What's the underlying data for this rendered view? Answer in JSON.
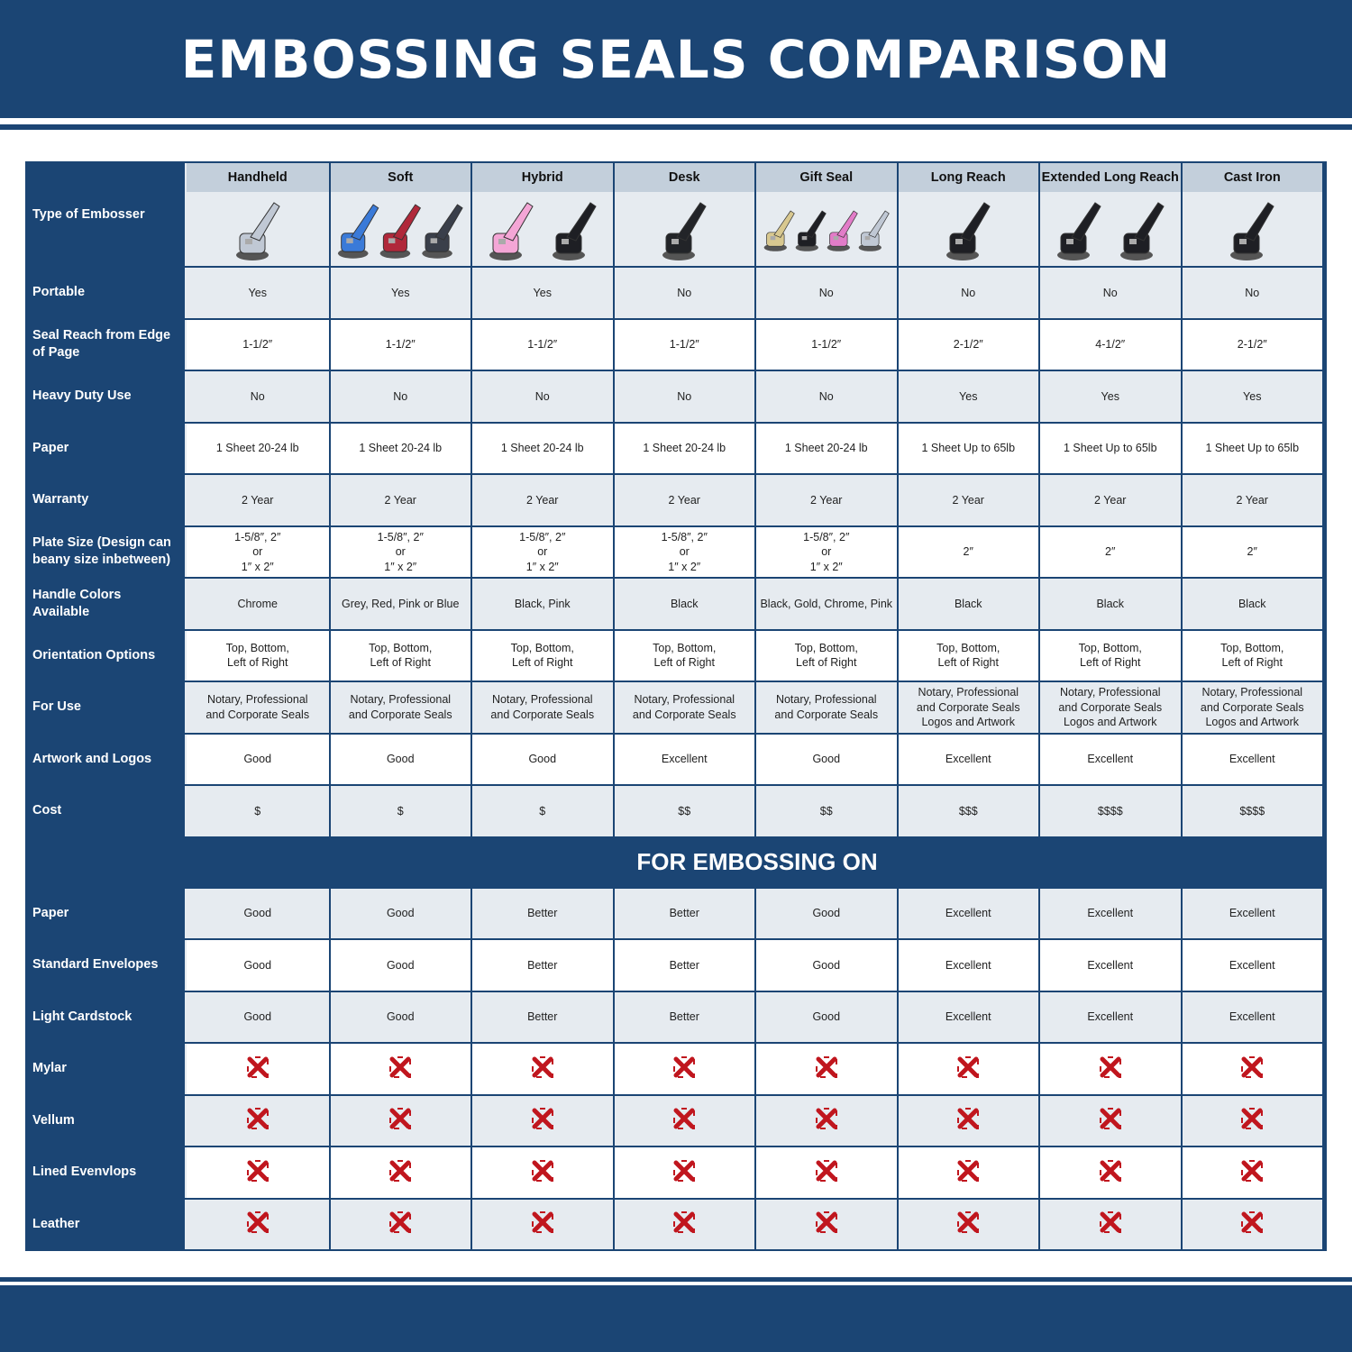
{
  "title": "EMBOSSING SEALS COMPARISON",
  "corner_label": "Type of Embosser",
  "columns": [
    {
      "name": "Handheld",
      "icon": "handheld-embosser-image",
      "colors": [
        "#c0c8d4"
      ]
    },
    {
      "name": "Soft",
      "icon": "soft-embosser-image",
      "colors": [
        "#3a7ad8",
        "#b0283a",
        "#3a3f4a"
      ]
    },
    {
      "name": "Hybrid",
      "icon": "hybrid-embosser-image",
      "colors": [
        "#f4a6d6",
        "#1e1f24"
      ]
    },
    {
      "name": "Desk",
      "icon": "desk-embosser-image",
      "colors": [
        "#222428"
      ]
    },
    {
      "name": "Gift Seal",
      "icon": "gift-seal-embosser-image",
      "colors": [
        "#d8c890",
        "#1e1f24",
        "#e27cc8",
        "#c0c8d4"
      ]
    },
    {
      "name": "Long Reach",
      "icon": "long-reach-embosser-image",
      "colors": [
        "#1e1f24"
      ]
    },
    {
      "name": "Extended Long Reach",
      "icon": "extended-long-reach-embosser-image",
      "colors": [
        "#1e1f24",
        "#1e1f24"
      ]
    },
    {
      "name": "Cast Iron",
      "icon": "cast-iron-embosser-image",
      "colors": [
        "#1e1f24"
      ]
    }
  ],
  "rows": [
    {
      "label": "Portable",
      "values": [
        "Yes",
        "Yes",
        "Yes",
        "No",
        "No",
        "No",
        "No",
        "No"
      ]
    },
    {
      "label": "Seal Reach from Edge of Page",
      "values": [
        "1-1/2″",
        "1-1/2″",
        "1-1/2″",
        "1-1/2″",
        "1-1/2″",
        "2-1/2″",
        "4-1/2″",
        "2-1/2″"
      ]
    },
    {
      "label": "Heavy Duty Use",
      "values": [
        "No",
        "No",
        "No",
        "No",
        "No",
        "Yes",
        "Yes",
        "Yes"
      ]
    },
    {
      "label": "Paper",
      "values": [
        "1 Sheet 20-24 lb",
        "1 Sheet 20-24 lb",
        "1 Sheet 20-24 lb",
        "1 Sheet 20-24 lb",
        "1 Sheet 20-24 lb",
        "1 Sheet Up to 65lb",
        "1 Sheet Up to 65lb",
        "1 Sheet Up to 65lb"
      ]
    },
    {
      "label": "Warranty",
      "values": [
        "2 Year",
        "2 Year",
        "2 Year",
        "2 Year",
        "2 Year",
        "2 Year",
        "2 Year",
        "2 Year"
      ]
    },
    {
      "label": "Plate Size (Design can beany size inbetween)",
      "values": [
        "1-5/8″, 2″\nor\n1″ x 2″",
        "1-5/8″, 2″\nor\n1″ x 2″",
        "1-5/8″, 2″\nor\n1″ x 2″",
        "1-5/8″, 2″\nor\n1″ x 2″",
        "1-5/8″, 2″\nor\n1″ x 2″",
        "2″",
        "2″",
        "2″"
      ]
    },
    {
      "label": "Handle Colors Available",
      "values": [
        "Chrome",
        "Grey, Red, Pink or Blue",
        "Black, Pink",
        "Black",
        "Black, Gold, Chrome, Pink",
        "Black",
        "Black",
        "Black"
      ]
    },
    {
      "label": "Orientation Options",
      "values": [
        "Top, Bottom,\nLeft of Right",
        "Top, Bottom,\nLeft of Right",
        "Top, Bottom,\nLeft of Right",
        "Top, Bottom,\nLeft of Right",
        "Top, Bottom,\nLeft of Right",
        "Top, Bottom,\nLeft of Right",
        "Top, Bottom,\nLeft of Right",
        "Top, Bottom,\nLeft of Right"
      ]
    },
    {
      "label": "For Use",
      "values": [
        "Notary, Professional\nand Corporate Seals",
        "Notary, Professional\nand Corporate Seals",
        "Notary, Professional\nand Corporate Seals",
        "Notary, Professional\nand Corporate Seals",
        "Notary, Professional\nand Corporate Seals",
        "Notary, Professional\nand Corporate Seals\nLogos and Artwork",
        "Notary, Professional\nand Corporate Seals\nLogos and Artwork",
        "Notary, Professional\nand Corporate Seals\nLogos and Artwork"
      ]
    },
    {
      "label": "Artwork and Logos",
      "values": [
        "Good",
        "Good",
        "Good",
        "Excellent",
        "Good",
        "Excellent",
        "Excellent",
        "Excellent"
      ]
    },
    {
      "label": "Cost",
      "values": [
        "$",
        "$",
        "$",
        "$$",
        "$$",
        "$$$",
        "$$$$",
        "$$$$"
      ]
    }
  ],
  "section_title": "FOR EMBOSSING ON",
  "surface_rows": [
    {
      "label": "Paper",
      "values": [
        "Good",
        "Good",
        "Better",
        "Better",
        "Good",
        "Excellent",
        "Excellent",
        "Excellent"
      ]
    },
    {
      "label": "Standard Envelopes",
      "values": [
        "Good",
        "Good",
        "Better",
        "Better",
        "Good",
        "Excellent",
        "Excellent",
        "Excellent"
      ]
    },
    {
      "label": "Light Cardstock",
      "values": [
        "Good",
        "Good",
        "Better",
        "Better",
        "Good",
        "Excellent",
        "Excellent",
        "Excellent"
      ]
    },
    {
      "label": "Mylar",
      "values": [
        "x-icon",
        "x-icon",
        "x-icon",
        "x-icon",
        "x-icon",
        "x-icon",
        "x-icon",
        "x-icon"
      ]
    },
    {
      "label": "Vellum",
      "values": [
        "x-icon",
        "x-icon",
        "x-icon",
        "x-icon",
        "x-icon",
        "x-icon",
        "x-icon",
        "x-icon"
      ]
    },
    {
      "label": "Lined Evenvlops",
      "values": [
        "x-icon",
        "x-icon",
        "x-icon",
        "x-icon",
        "x-icon",
        "x-icon",
        "x-icon",
        "x-icon"
      ]
    },
    {
      "label": "Leather",
      "values": [
        "x-icon",
        "x-icon",
        "x-icon",
        "x-icon",
        "x-icon",
        "x-icon",
        "x-icon",
        "x-icon"
      ]
    }
  ],
  "colors": {
    "brand": "#1b4574",
    "header_cell": "#c3cfdb",
    "light_row": "#e6ebf0",
    "x_mark": "#c0161e"
  }
}
